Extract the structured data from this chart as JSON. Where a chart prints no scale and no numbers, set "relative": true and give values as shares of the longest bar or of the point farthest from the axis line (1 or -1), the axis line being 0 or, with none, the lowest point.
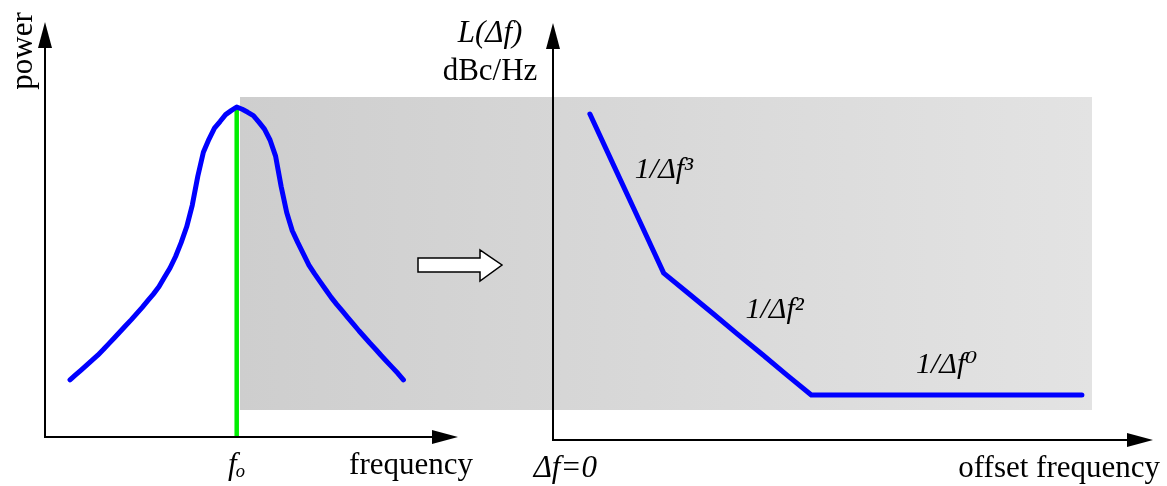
{
  "chart_data": [
    {
      "type": "line",
      "xlabel": "frequency",
      "ylabel": "power",
      "relative": true,
      "categories": [
        null,
        null,
        null,
        null,
        null,
        null,
        null,
        null,
        null,
        null,
        null,
        null,
        null,
        null,
        null,
        null,
        null,
        null,
        null,
        null,
        null,
        null,
        null,
        null,
        null,
        null,
        null,
        null,
        null,
        null,
        null,
        null,
        null,
        null,
        null,
        null,
        null,
        null,
        null,
        null,
        null,
        null,
        null,
        null,
        null,
        null,
        null,
        null,
        null,
        null,
        null,
        null,
        null,
        null,
        null,
        null,
        null,
        null,
        null,
        null,
        null
      ],
      "series": [
        {
          "color": "#0000ff",
          "values": [
            0.173,
            0.188,
            0.203,
            0.218,
            0.233,
            0.248,
            0.265,
            0.283,
            0.301,
            0.319,
            0.337,
            0.355,
            0.374,
            0.393,
            0.413,
            0.433,
            0.455,
            0.484,
            0.512,
            0.547,
            0.589,
            0.637,
            0.702,
            0.79,
            0.863,
            0.902,
            0.936,
            0.956,
            0.977,
            0.989,
            1,
            0.993,
            0.984,
            0.974,
            0.954,
            0.933,
            0.9,
            0.851,
            0.759,
            0.68,
            0.625,
            0.589,
            0.555,
            0.521,
            0.495,
            0.471,
            0.447,
            0.423,
            0.402,
            0.382,
            0.362,
            0.342,
            0.322,
            0.303,
            0.284,
            0.266,
            0.247,
            0.229,
            0.211,
            0.193,
            0.173
          ]
        }
      ],
      "annotations": [
        "fₒ"
      ]
    },
    {
      "type": "line",
      "xlabel": "offset frequency",
      "ylabel": "L(Δf)\ndBc/Hz",
      "relative": true,
      "categories": [
        null,
        null,
        null,
        null,
        null,
        null,
        null,
        null,
        null,
        null,
        null,
        null,
        null,
        null,
        null,
        null,
        null,
        null,
        null,
        null,
        null,
        null
      ],
      "series": [
        {
          "color": "#0000ff",
          "values": [
            null,
            1,
            0.837,
            0.675,
            0.512,
            0.45,
            0.388,
            0.325,
            0.263,
            0.2,
            0.138,
            0.138,
            0.138,
            0.138,
            0.138,
            0.138,
            0.138,
            0.138,
            0.138,
            0.138,
            0.138,
            0.138
          ]
        }
      ],
      "annotations": [
        "Δf=0",
        "1/Δf³",
        "1/Δf²",
        "1/Δf⁰"
      ]
    }
  ]
}
